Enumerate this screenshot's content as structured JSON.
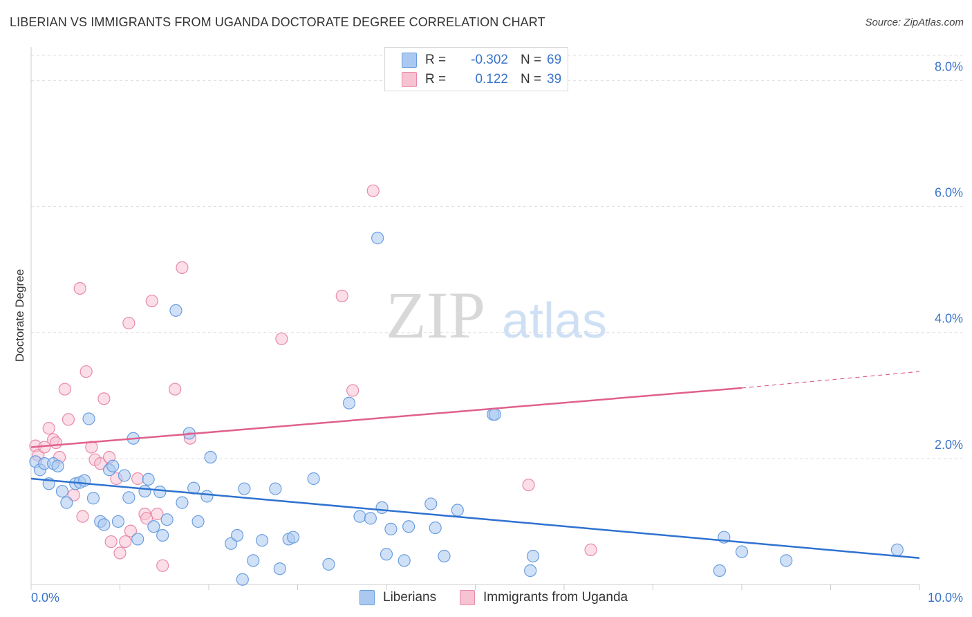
{
  "header": {
    "title": "LIBERIAN VS IMMIGRANTS FROM UGANDA DOCTORATE DEGREE CORRELATION CHART",
    "source": "Source: ZipAtlas.com"
  },
  "legend": {
    "series1": {
      "r_label": "R =",
      "r_value": "-0.302",
      "n_label": "N =",
      "n_value": "69"
    },
    "series2": {
      "r_label": "R =",
      "r_value": "0.122",
      "n_label": "N =",
      "n_value": "39"
    }
  },
  "bottom_legend": {
    "series1": "Liberians",
    "series2": "Immigrants from Uganda"
  },
  "watermark": {
    "zip": "ZIP",
    "atlas": "atlas"
  },
  "colors": {
    "blue_fill": "#aac8f0",
    "blue_stroke": "#6a9ee0",
    "blue_line": "#2f72d0",
    "pink_fill": "#f7c3d3",
    "pink_stroke": "#e98aa8",
    "pink_line": "#e0608c",
    "grid": "#dddddd",
    "axis_text": "#3a74c9"
  },
  "chart_data": {
    "type": "scatter",
    "title": "LIBERIAN VS IMMIGRANTS FROM UGANDA DOCTORATE DEGREE CORRELATION CHART",
    "xlabel": "",
    "ylabel": "Doctorate Degree",
    "xlim": [
      0,
      10
    ],
    "ylim": [
      0,
      8.4
    ],
    "x_tick_labels": [
      "0.0%",
      "10.0%"
    ],
    "y_ticks": [
      2,
      4,
      6,
      8
    ],
    "y_tick_labels": [
      "2.0%",
      "4.0%",
      "6.0%",
      "8.0%"
    ],
    "grid": true,
    "legend_position": "top-center",
    "series": [
      {
        "name": "Liberians",
        "r": -0.302,
        "n": 69,
        "trend": {
          "x": [
            0,
            10
          ],
          "y": [
            1.68,
            0.42
          ]
        },
        "points": [
          [
            0.05,
            1.95
          ],
          [
            0.1,
            1.82
          ],
          [
            0.15,
            1.92
          ],
          [
            0.2,
            1.6
          ],
          [
            0.25,
            1.92
          ],
          [
            0.3,
            1.88
          ],
          [
            0.35,
            1.48
          ],
          [
            0.4,
            1.3
          ],
          [
            0.5,
            1.6
          ],
          [
            0.55,
            1.62
          ],
          [
            0.6,
            1.65
          ],
          [
            0.65,
            2.63
          ],
          [
            0.7,
            1.37
          ],
          [
            0.78,
            1.0
          ],
          [
            0.82,
            0.95
          ],
          [
            0.88,
            1.82
          ],
          [
            0.92,
            1.88
          ],
          [
            0.98,
            1.0
          ],
          [
            1.05,
            1.73
          ],
          [
            1.1,
            1.38
          ],
          [
            1.15,
            2.32
          ],
          [
            1.2,
            0.72
          ],
          [
            1.28,
            1.48
          ],
          [
            1.32,
            1.67
          ],
          [
            1.38,
            0.92
          ],
          [
            1.45,
            1.47
          ],
          [
            1.48,
            0.78
          ],
          [
            1.53,
            1.03
          ],
          [
            1.63,
            4.35
          ],
          [
            1.7,
            1.3
          ],
          [
            1.78,
            2.4
          ],
          [
            1.83,
            1.53
          ],
          [
            1.88,
            1.0
          ],
          [
            1.98,
            1.4
          ],
          [
            2.02,
            2.02
          ],
          [
            2.25,
            0.65
          ],
          [
            2.32,
            0.78
          ],
          [
            2.38,
            0.08
          ],
          [
            2.4,
            1.52
          ],
          [
            2.5,
            0.38
          ],
          [
            2.6,
            0.7
          ],
          [
            2.75,
            1.52
          ],
          [
            2.8,
            0.25
          ],
          [
            2.9,
            0.72
          ],
          [
            2.95,
            0.75
          ],
          [
            3.18,
            1.68
          ],
          [
            3.35,
            0.32
          ],
          [
            3.58,
            2.88
          ],
          [
            3.7,
            1.08
          ],
          [
            3.82,
            1.05
          ],
          [
            3.9,
            5.5
          ],
          [
            3.95,
            1.22
          ],
          [
            4.0,
            0.48
          ],
          [
            4.05,
            0.88
          ],
          [
            4.2,
            0.38
          ],
          [
            4.25,
            0.92
          ],
          [
            4.5,
            1.28
          ],
          [
            4.55,
            0.9
          ],
          [
            4.65,
            0.45
          ],
          [
            4.8,
            1.18
          ],
          [
            5.2,
            2.7
          ],
          [
            5.22,
            2.7
          ],
          [
            5.62,
            0.22
          ],
          [
            5.65,
            0.45
          ],
          [
            7.75,
            0.22
          ],
          [
            7.8,
            0.75
          ],
          [
            8.0,
            0.52
          ],
          [
            8.5,
            0.38
          ],
          [
            9.75,
            0.55
          ]
        ]
      },
      {
        "name": "Immigrants from Uganda",
        "r": 0.122,
        "n": 39,
        "trend": {
          "x": [
            0,
            8
          ],
          "y": [
            2.18,
            3.12
          ]
        },
        "trend_dashed": {
          "x": [
            8,
            10
          ],
          "y": [
            3.12,
            3.38
          ]
        },
        "points": [
          [
            0.05,
            2.2
          ],
          [
            0.08,
            2.05
          ],
          [
            0.15,
            2.18
          ],
          [
            0.2,
            2.48
          ],
          [
            0.25,
            2.3
          ],
          [
            0.28,
            2.25
          ],
          [
            0.32,
            2.02
          ],
          [
            0.38,
            3.1
          ],
          [
            0.42,
            2.62
          ],
          [
            0.48,
            1.42
          ],
          [
            0.55,
            4.7
          ],
          [
            0.58,
            1.08
          ],
          [
            0.62,
            3.38
          ],
          [
            0.68,
            2.18
          ],
          [
            0.72,
            1.98
          ],
          [
            0.78,
            1.92
          ],
          [
            0.82,
            2.95
          ],
          [
            0.88,
            2.02
          ],
          [
            0.9,
            0.68
          ],
          [
            0.96,
            1.68
          ],
          [
            1.0,
            0.5
          ],
          [
            1.06,
            0.68
          ],
          [
            1.1,
            4.15
          ],
          [
            1.12,
            0.85
          ],
          [
            1.2,
            1.68
          ],
          [
            1.28,
            1.12
          ],
          [
            1.3,
            1.05
          ],
          [
            1.36,
            4.5
          ],
          [
            1.42,
            1.12
          ],
          [
            1.48,
            0.3
          ],
          [
            1.62,
            3.1
          ],
          [
            1.7,
            5.03
          ],
          [
            1.79,
            2.32
          ],
          [
            2.82,
            3.9
          ],
          [
            3.5,
            4.58
          ],
          [
            3.62,
            3.08
          ],
          [
            3.85,
            6.25
          ],
          [
            5.6,
            1.58
          ],
          [
            6.3,
            0.55
          ]
        ]
      }
    ]
  }
}
